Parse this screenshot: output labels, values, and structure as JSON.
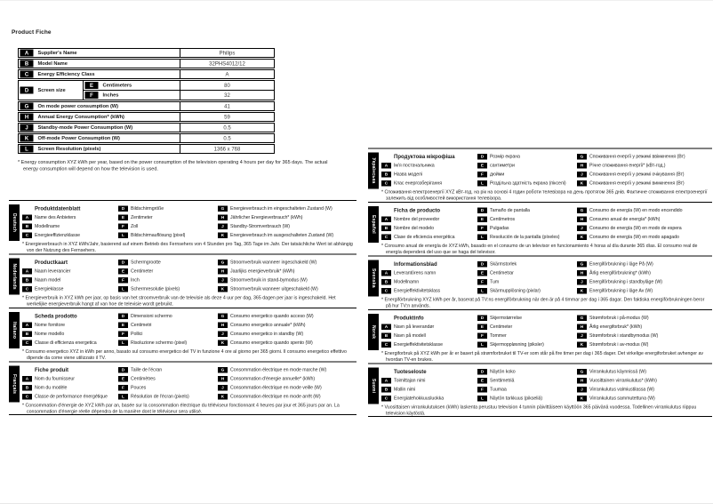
{
  "page_title": "Product Fiche",
  "letters": {
    "A": "A",
    "B": "B",
    "C": "C",
    "D": "D",
    "E": "E",
    "F": "F",
    "G": "G",
    "H": "H",
    "J": "J",
    "K": "K",
    "L": "L"
  },
  "product_table": {
    "rows": [
      {
        "key": "A",
        "label": "Supplier's Name",
        "value": "Philips"
      },
      {
        "key": "B",
        "label": "Model Name",
        "value": "32PHS4012/12"
      },
      {
        "key": "C",
        "label": "Energy Efficiency Class",
        "value": "A"
      },
      {
        "key": "D",
        "label": "Screen size",
        "sub": [
          {
            "key": "E",
            "label": "Centimeters",
            "value": "80"
          },
          {
            "key": "F",
            "label": "Inches",
            "value": "32"
          }
        ]
      },
      {
        "key": "G",
        "label": "On mode power consumption (W)",
        "value": "41"
      },
      {
        "key": "H",
        "label": "Annual Energy Consumption* (kWh)",
        "value": "59"
      },
      {
        "key": "J",
        "label": "Standby-mode Power Consumption (W)",
        "value": "0.5"
      },
      {
        "key": "K",
        "label": "Off-mode Power Consumption (W)",
        "value": "0.5"
      },
      {
        "key": "L",
        "label": "Screen Resolution (pixels)",
        "value": "1366 x 768"
      }
    ],
    "footnote": "* Energy consumption XYZ kWh per year, based on the power consumption of the television operating 4 hours per day for 365 days. The actual energy consumption will depend on how the television is used."
  },
  "sections_left": [
    {
      "language": "Deutsch",
      "title": "Produktdatenblatt",
      "items": {
        "A": "Name des Anbieters",
        "B": "Modellname",
        "C": "Energieeffizienzklasse",
        "D": "Bildschirmgröße",
        "E": "Zentimeter",
        "F": "Zoll",
        "L": "Bildschirmauflösung (pixel)",
        "G": "Energieverbrauch im eingeschalteten Zustand (W)",
        "H": "Jährlicher Energieverbrauch* (kWh)",
        "J": "Standby-Stromverbrauch (W)",
        "K": "Energieverbrauch im ausgeschalteten Zustand (W)"
      },
      "footnote": "* Energieverbrauch in XYZ kWh/Jahr, basierend auf einem Betrieb des Fernsehers von 4 Stunden pro Tag, 365 Tage im Jahr. Der tatsächliche Wert ist abhängig von der Nutzung des Fernsehers."
    },
    {
      "language": "Nederlands",
      "title": "Productkaart",
      "items": {
        "A": "Naam leverancier",
        "B": "Naam model",
        "C": "Energieklasse",
        "D": "Schermgrootte",
        "E": "Centimeter",
        "F": "Inch",
        "L": "Schermresolutie (pixels)",
        "G": "Stroomverbruik wanneer ingeschakeld (W)",
        "H": "Jaarlijks energieverbruik* (kWh)",
        "J": "Stroomverbruik in stand-bymodus (W)",
        "K": "Stroomverbruik wanneer uitgeschakeld (W)"
      },
      "footnote": "* Energieverbruik in XYZ kWh per jaar, op basis van het stroomverbruik van de televisie als deze 4 uur per dag, 365 dagen per jaar is ingeschakeld. Het werkelijke energieverbruik hangt af van hoe de televisie wordt gebruikt."
    },
    {
      "language": "Italiano",
      "title": "Scheda prodotto",
      "items": {
        "A": "Nome fornitore",
        "B": "Nome modello",
        "C": "Classe di efficienza energetica",
        "D": "Dimensioni schermo",
        "E": "Centimetri",
        "F": "Pollici",
        "L": "Risoluzione schermo (pixel)",
        "G": "Consumo energetico quando acceso (W)",
        "H": "Consumo energetico annuale* (kWh)",
        "J": "Consumo energetico in standby (W)",
        "K": "Consumo energetico quando spento (W)"
      },
      "footnote": "* Consumo energetico XYZ in kWh per anno, basato sul consumo energetico del TV in funzione 4 ore al giorno per 365 giorni. Il consumo energetico effettivo dipende da come viene utilizzato il TV."
    },
    {
      "language": "Français",
      "title": "Fiche produit",
      "items": {
        "A": "Nom du fournisseur",
        "B": "Nom du modèle",
        "C": "Classe de performance énergétique",
        "D": "Taille de l'écran",
        "E": "Centimètres",
        "F": "Pouces",
        "L": "Résolution de l'écran (pixels)",
        "G": "Consommation électrique en mode marche (W)",
        "H": "Consommation d'énergie annuelle* (kWh)",
        "J": "Consommation électrique en mode veille (W)",
        "K": "Consommation électrique en mode arrêt (W)"
      },
      "footnote": "* Consommation d'énergie de XYZ kWh par an, basée sur la consommation électrique du téléviseur fonctionnant 4 heures par jour et 365 jours par an. La consommation d'énergie réelle dépendra de la manière dont le téléviseur sera utilisé."
    }
  ],
  "sections_right": [
    {
      "language": "Українська",
      "title": "Продуктова мікрофіша",
      "items": {
        "A": "Ім'я постачальника",
        "B": "Назва моделі",
        "C": "Клас енергозберігання",
        "D": "Розмір екрана",
        "E": "сантиметри",
        "F": "дюйми",
        "L": "Роздільна здатність екрана (пікселі)",
        "G": "Споживання енергії у режимі ввімкнення (Вт)",
        "H": "Річне споживання енергії* (кВт-год.)",
        "J": "Споживання енергії у режимі очікування (Вт)",
        "K": "Споживання енергії у режимі вимкнення (Вт)"
      },
      "footnote": "* Споживання електроенергії XYZ кВт-год. на рік на основі 4 годин роботи телевізора на день протягом 365 днів. Фактичне споживання електроенергії залежить від особливостей використання телевізора."
    },
    {
      "language": "Español",
      "title": "Ficha de producto",
      "items": {
        "A": "Nombre del proveedor",
        "B": "Nombre del modelo",
        "C": "Clase de eficiencia energética",
        "D": "Tamaño de pantalla",
        "E": "Centímetros",
        "F": "Pulgadas",
        "L": "Resolución de la pantalla (píxeles)",
        "G": "Consumo de energía (W) en modo encendido",
        "H": "Consumo anual de energía* (kWh)",
        "J": "Consumo de energía (W) en modo de espera",
        "K": "Consumo de energía (W) en modo apagado"
      },
      "footnote": "* Consumo anual de energía de XYZ kWh, basado en el consumo de un televisor en funcionamiento 4 horas al día durante 365 días. El consumo real de energía dependerá del uso que se haga del televisor."
    },
    {
      "language": "Svenska",
      "title": "Informationsblad",
      "items": {
        "A": "Leverantörens namn",
        "B": "Modellnamn",
        "C": "Energieffektivitetsklass",
        "D": "Skärmstorlek",
        "E": "Centimetrar",
        "F": "Tum",
        "L": "Skärmupplösning (pixlar)",
        "G": "Energiförbrukning i läge På (W)",
        "H": "Årlig energiförbrukning* (kWh)",
        "J": "Energiförbrukning i standbyläge (W)",
        "K": "Energiförbrukning i läge Av (W)"
      },
      "footnote": "* Energiförbrukning XYZ kWh per år, baserat på TV:ns energiförbrukning när den är på 4 timmar per dag i 365 dagar. Den faktiska energiförbrukningen beror på hur TV:n används."
    },
    {
      "language": "Norsk",
      "title": "Produktinfo",
      "items": {
        "A": "Navn på leverandør",
        "B": "Navn på modell",
        "C": "Energieffektivitetsklasse",
        "D": "Skjermstørrelse",
        "E": "Centimeter",
        "F": "Tommer",
        "L": "Skjermoppløsning (piksler)",
        "G": "Strømforbruk i på-modus (W)",
        "H": "Årlig energiforbruk* (kWh)",
        "J": "Strømforbruk i standbymodus (W)",
        "K": "Strømforbruk i av-modus (W)"
      },
      "footnote": "* Energiforbruk på XYZ kWh per år er basert på strømforbruket til TV-er som står på fire timer per dag i 365 dager. Det virkelige energiforbruket avhenger av hvordan TV-en brukes."
    },
    {
      "language": "Suomi",
      "title": "Tuoteseloste",
      "items": {
        "A": "Toimittajan nimi",
        "B": "Mallin nimi",
        "C": "Energiatehokkuusluokka",
        "D": "Näytön koko",
        "E": "Senttimetriä",
        "F": "Tuumaa",
        "L": "Näytön tarkkuus (pikseliä)",
        "G": "Virrankulutus käynnissä (W)",
        "H": "Vuosittainen virrankulutus* (kWh)",
        "J": "Virrankulutus valmiustilassa (W)",
        "K": "Virrankulutus sammutettuna (W)"
      },
      "footnote": "* Vuosittaisen virrankulutuksen (kWh) laskenta perustuu television 4 tunnin päivittäiseen käyttöön 365 päivänä vuodessa. Todellinen virrankulutus riippuu television käytöstä."
    }
  ]
}
